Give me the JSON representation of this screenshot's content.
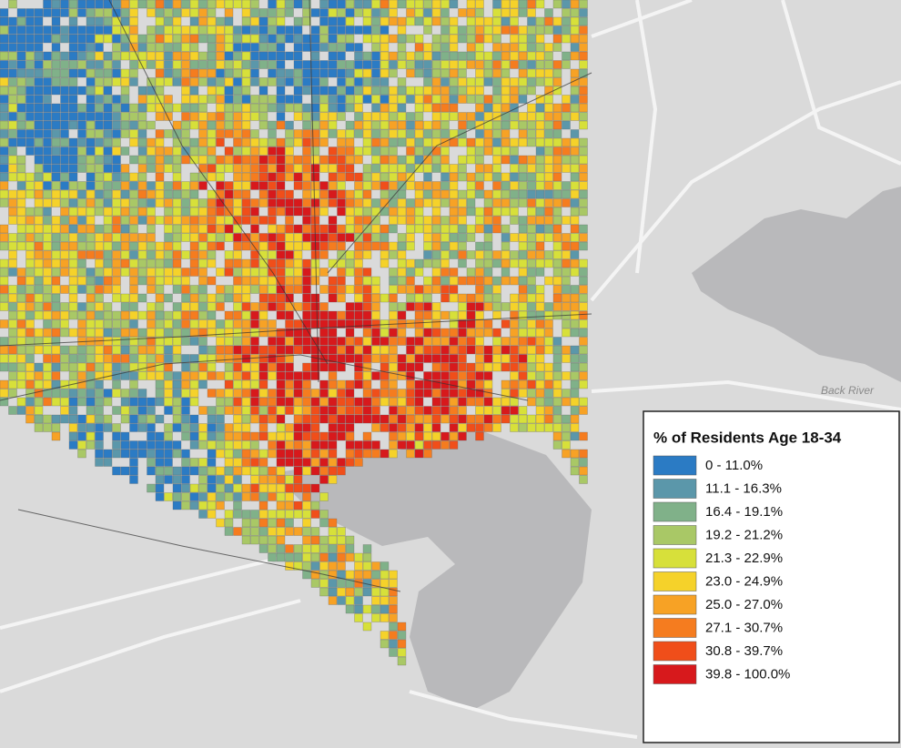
{
  "legend": {
    "title": "% of Residents Age 18-34",
    "items": [
      {
        "label": "0 - 11.0%",
        "color": "#2b7bc4"
      },
      {
        "label": "11.1 - 16.3%",
        "color": "#5b97aa"
      },
      {
        "label": "16.4 - 19.1%",
        "color": "#80b189"
      },
      {
        "label": "19.2 - 21.2%",
        "color": "#a9c866"
      },
      {
        "label": "21.3 - 22.9%",
        "color": "#d7e03a"
      },
      {
        "label": "23.0 - 24.9%",
        "color": "#f5d22a"
      },
      {
        "label": "25.0 - 27.0%",
        "color": "#f7a225"
      },
      {
        "label": "27.1 - 30.7%",
        "color": "#f57c1f"
      },
      {
        "label": "30.8 - 39.7%",
        "color": "#f04e1a"
      },
      {
        "label": "39.8 - 100.0%",
        "color": "#d7191c"
      }
    ]
  },
  "labels": {
    "water": "Back River"
  }
}
